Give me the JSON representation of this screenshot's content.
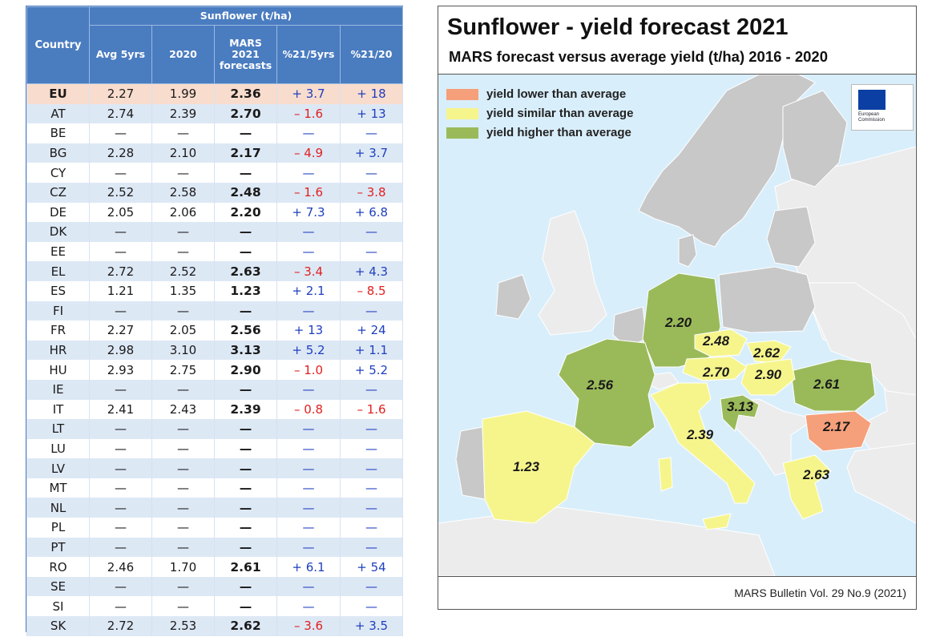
{
  "table": {
    "group_header": "Sunflower (t/ha)",
    "headers": {
      "country": "Country",
      "avg": "Avg 5yrs",
      "y2020": "2020",
      "mars_l1": "MARS",
      "mars_l2": "2021",
      "mars_l3": "forecasts",
      "pct5": "%21/5yrs",
      "pct20": "%21/20"
    },
    "rows": [
      {
        "country": "EU",
        "avg": "2.27",
        "y2020": "1.99",
        "forecast": "2.36",
        "pct5": "+ 3.7",
        "pct20": "+ 18"
      },
      {
        "country": "AT",
        "avg": "2.74",
        "y2020": "2.39",
        "forecast": "2.70",
        "pct5": "– 1.6",
        "pct20": "+ 13"
      },
      {
        "country": "BE",
        "avg": "—",
        "y2020": "—",
        "forecast": "—",
        "pct5": "—",
        "pct20": "—"
      },
      {
        "country": "BG",
        "avg": "2.28",
        "y2020": "2.10",
        "forecast": "2.17",
        "pct5": "– 4.9",
        "pct20": "+ 3.7"
      },
      {
        "country": "CY",
        "avg": "—",
        "y2020": "—",
        "forecast": "—",
        "pct5": "—",
        "pct20": "—"
      },
      {
        "country": "CZ",
        "avg": "2.52",
        "y2020": "2.58",
        "forecast": "2.48",
        "pct5": "– 1.6",
        "pct20": "– 3.8"
      },
      {
        "country": "DE",
        "avg": "2.05",
        "y2020": "2.06",
        "forecast": "2.20",
        "pct5": "+ 7.3",
        "pct20": "+ 6.8"
      },
      {
        "country": "DK",
        "avg": "—",
        "y2020": "—",
        "forecast": "—",
        "pct5": "—",
        "pct20": "—"
      },
      {
        "country": "EE",
        "avg": "—",
        "y2020": "—",
        "forecast": "—",
        "pct5": "—",
        "pct20": "—"
      },
      {
        "country": "EL",
        "avg": "2.72",
        "y2020": "2.52",
        "forecast": "2.63",
        "pct5": "– 3.4",
        "pct20": "+ 4.3"
      },
      {
        "country": "ES",
        "avg": "1.21",
        "y2020": "1.35",
        "forecast": "1.23",
        "pct5": "+ 2.1",
        "pct20": "– 8.5"
      },
      {
        "country": "FI",
        "avg": "—",
        "y2020": "—",
        "forecast": "—",
        "pct5": "—",
        "pct20": "—"
      },
      {
        "country": "FR",
        "avg": "2.27",
        "y2020": "2.05",
        "forecast": "2.56",
        "pct5": "+ 13",
        "pct20": "+ 24"
      },
      {
        "country": "HR",
        "avg": "2.98",
        "y2020": "3.10",
        "forecast": "3.13",
        "pct5": "+ 5.2",
        "pct20": "+ 1.1"
      },
      {
        "country": "HU",
        "avg": "2.93",
        "y2020": "2.75",
        "forecast": "2.90",
        "pct5": "– 1.0",
        "pct20": "+ 5.2"
      },
      {
        "country": "IE",
        "avg": "—",
        "y2020": "—",
        "forecast": "—",
        "pct5": "—",
        "pct20": "—"
      },
      {
        "country": "IT",
        "avg": "2.41",
        "y2020": "2.43",
        "forecast": "2.39",
        "pct5": "– 0.8",
        "pct20": "– 1.6"
      },
      {
        "country": "LT",
        "avg": "—",
        "y2020": "—",
        "forecast": "—",
        "pct5": "—",
        "pct20": "—"
      },
      {
        "country": "LU",
        "avg": "—",
        "y2020": "—",
        "forecast": "—",
        "pct5": "—",
        "pct20": "—"
      },
      {
        "country": "LV",
        "avg": "—",
        "y2020": "—",
        "forecast": "—",
        "pct5": "—",
        "pct20": "—"
      },
      {
        "country": "MT",
        "avg": "—",
        "y2020": "—",
        "forecast": "—",
        "pct5": "—",
        "pct20": "—"
      },
      {
        "country": "NL",
        "avg": "—",
        "y2020": "—",
        "forecast": "—",
        "pct5": "—",
        "pct20": "—"
      },
      {
        "country": "PL",
        "avg": "—",
        "y2020": "—",
        "forecast": "—",
        "pct5": "—",
        "pct20": "—"
      },
      {
        "country": "PT",
        "avg": "—",
        "y2020": "—",
        "forecast": "—",
        "pct5": "—",
        "pct20": "—"
      },
      {
        "country": "RO",
        "avg": "2.46",
        "y2020": "1.70",
        "forecast": "2.61",
        "pct5": "+ 6.1",
        "pct20": "+ 54"
      },
      {
        "country": "SE",
        "avg": "—",
        "y2020": "—",
        "forecast": "—",
        "pct5": "—",
        "pct20": "—"
      },
      {
        "country": "SI",
        "avg": "—",
        "y2020": "—",
        "forecast": "—",
        "pct5": "—",
        "pct20": "—"
      },
      {
        "country": "SK",
        "avg": "2.72",
        "y2020": "2.53",
        "forecast": "2.62",
        "pct5": "– 3.6",
        "pct20": "+ 3.5"
      }
    ]
  },
  "map": {
    "title": "Sunflower - yield forecast 2021",
    "subtitle": "MARS forecast versus average yield (t/ha) 2016 - 2020",
    "legend": [
      {
        "label": "yield lower than average",
        "color": "#f5a07a"
      },
      {
        "label": "yield similar than average",
        "color": "#f6f58c"
      },
      {
        "label": "yield higher than average",
        "color": "#9aba5a"
      }
    ],
    "logo_text_l1": "European",
    "logo_text_l2": "Commission",
    "source": "MARS Bulletin Vol. 29 No.9 (2021)",
    "colors": {
      "sea": "#d9eefb",
      "grey": "#c8c8c8",
      "nonEU": "#ececec",
      "lower": "#f5a07a",
      "similar": "#f6f58c",
      "higher": "#9aba5a"
    },
    "value_labels": [
      {
        "country": "DE",
        "value": "2.20"
      },
      {
        "country": "CZ",
        "value": "2.48"
      },
      {
        "country": "SK",
        "value": "2.62"
      },
      {
        "country": "AT",
        "value": "2.70"
      },
      {
        "country": "HU",
        "value": "2.90"
      },
      {
        "country": "FR",
        "value": "2.56"
      },
      {
        "country": "RO",
        "value": "2.61"
      },
      {
        "country": "HR",
        "value": "3.13"
      },
      {
        "country": "BG",
        "value": "2.17"
      },
      {
        "country": "IT",
        "value": "2.39"
      },
      {
        "country": "ES",
        "value": "1.23"
      },
      {
        "country": "EL",
        "value": "2.63"
      }
    ]
  }
}
